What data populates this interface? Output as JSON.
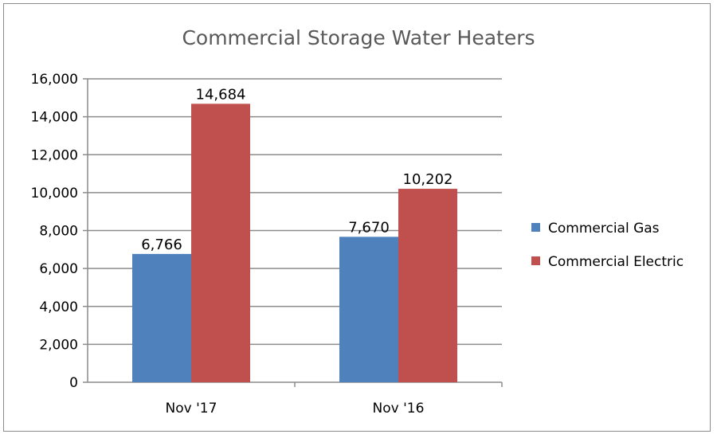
{
  "chart_data": {
    "type": "bar",
    "title": "Commercial Storage Water Heaters",
    "categories": [
      "Nov '17",
      "Nov '16"
    ],
    "series": [
      {
        "name": "Commercial Gas",
        "values": [
          6766,
          7670
        ],
        "color": "#4f81bd"
      },
      {
        "name": "Commercial Electric",
        "values": [
          14684,
          10202
        ],
        "color": "#c0504d"
      }
    ],
    "data_labels": [
      [
        "6,766",
        "7,670"
      ],
      [
        "14,684",
        "10,202"
      ]
    ],
    "ylim": [
      0,
      16000
    ],
    "yticks": [
      "0",
      "2,000",
      "4,000",
      "6,000",
      "8,000",
      "10,000",
      "12,000",
      "14,000",
      "16,000"
    ],
    "xlabel": "",
    "ylabel": "",
    "grid": true,
    "legend": "right"
  }
}
